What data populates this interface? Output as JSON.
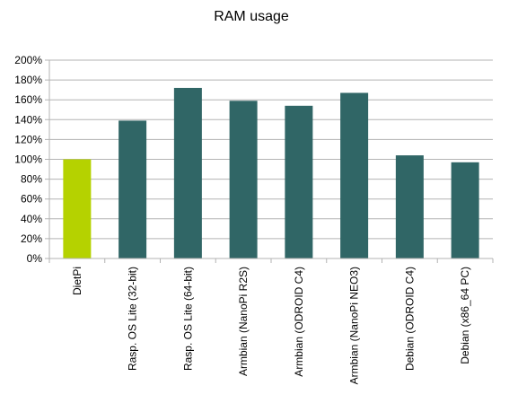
{
  "chart_data": {
    "type": "bar",
    "title": "RAM usage",
    "xlabel": "",
    "ylabel": "",
    "ylim": [
      0,
      200
    ],
    "ytick_step": 20,
    "ytick_suffix": "%",
    "grid": true,
    "categories": [
      "DietPi",
      "Rasp. OS Lite (32-bit)",
      "Rasp. OS Lite (64-bit)",
      "Armbian (NanoPi R2S)",
      "Armbian (ODROID C4)",
      "Armbian (NanoPi NEO3)",
      "Debian (ODROID C4)",
      "Debian (x86_64 PC)"
    ],
    "values": [
      100,
      139,
      172,
      159,
      154,
      167,
      104,
      97
    ],
    "colors": [
      "#b5d200",
      "#306666",
      "#306666",
      "#306666",
      "#306666",
      "#306666",
      "#306666",
      "#306666"
    ],
    "grid_color": "#b3b3b3",
    "axis_color": "#b3b3b3"
  }
}
